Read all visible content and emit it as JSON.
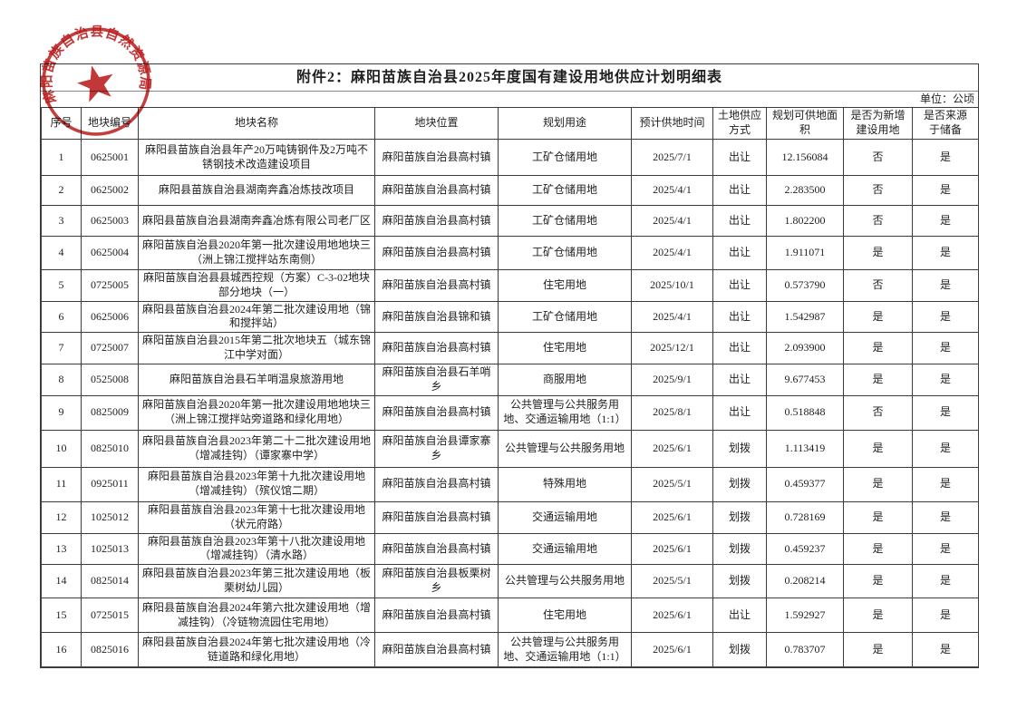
{
  "page": {
    "title": "附件2：麻阳苗族自治县2025年度国有建设用地供应计划明细表",
    "unit_label": "单位：公顷"
  },
  "seal": {
    "text": "麻阳苗族自治县自然资源局",
    "color": "#ba1c1c"
  },
  "table": {
    "headers": [
      "序号",
      "地块编号",
      "地块名称",
      "地块位置",
      "规划用途",
      "预计供地时间",
      "土地供应\n方式",
      "规划可供地面\n积",
      "是否为新增\n建设用地",
      "是否来源\n于储备"
    ],
    "rows": [
      [
        "1",
        "0625001",
        "麻阳县苗族自治县年产20万吨铸钢件及2万吨不锈钢技术改造建设项目",
        "麻阳苗族自治县高村镇",
        "工矿仓储用地",
        "2025/7/1",
        "出让",
        "12.156084",
        "否",
        "是"
      ],
      [
        "2",
        "0625002",
        "麻阳县苗族自治县湖南奔鑫冶炼技改项目",
        "麻阳苗族自治县高村镇",
        "工矿仓储用地",
        "2025/4/1",
        "出让",
        "2.283500",
        "否",
        "是"
      ],
      [
        "3",
        "0625003",
        "麻阳县苗族自治县湖南奔鑫冶炼有限公司老厂区",
        "麻阳苗族自治县高村镇",
        "工矿仓储用地",
        "2025/4/1",
        "出让",
        "1.802200",
        "否",
        "是"
      ],
      [
        "4",
        "0625004",
        "麻阳苗族自治县2020年第一批次建设用地地块三（洲上锦江搅拌站东南侧）",
        "麻阳苗族自治县高村镇",
        "工矿仓储用地",
        "2025/4/1",
        "出让",
        "1.911071",
        "是",
        "是"
      ],
      [
        "5",
        "0725005",
        "麻阳苗族自治县县城西控规（方案）C-3-02地块部分地块（一）",
        "麻阳苗族自治县高村镇",
        "住宅用地",
        "2025/10/1",
        "出让",
        "0.573790",
        "否",
        "是"
      ],
      [
        "6",
        "0625006",
        "麻阳县苗族自治县2024年第二批次建设用地（锦和搅拌站）",
        "麻阳苗族自治县锦和镇",
        "工矿仓储用地",
        "2025/4/1",
        "出让",
        "1.542987",
        "是",
        "是"
      ],
      [
        "7",
        "0725007",
        "麻阳苗族自治县2015年第二批次地块五（城东锦江中学对面）",
        "麻阳苗族自治县高村镇",
        "住宅用地",
        "2025/12/1",
        "出让",
        "2.093900",
        "是",
        "是"
      ],
      [
        "8",
        "0525008",
        "麻阳苗族自治县石羊哨温泉旅游用地",
        "麻阳苗族自治县石羊哨乡",
        "商服用地",
        "2025/9/1",
        "出让",
        "9.677453",
        "是",
        "是"
      ],
      [
        "9",
        "0825009",
        "麻阳苗族自治县2020年第一批次建设用地地块三（洲上锦江搅拌站旁道路和绿化用地）",
        "麻阳苗族自治县高村镇",
        "公共管理与公共服务用地、交通运输用地（1:1）",
        "2025/8/1",
        "出让",
        "0.518848",
        "否",
        "是"
      ],
      [
        "10",
        "0825010",
        "麻阳县苗族自治县2023年第二十二批次建设用地（增减挂钩）（谭家寨中学）",
        "麻阳苗族自治县谭家寨乡",
        "公共管理与公共服务用地",
        "2025/6/1",
        "划拨",
        "1.113419",
        "是",
        "是"
      ],
      [
        "11",
        "0925011",
        "麻阳县苗族自治县2023年第十九批次建设用地（增减挂钩）（殡仪馆二期）",
        "麻阳苗族自治县高村镇",
        "特殊用地",
        "2025/5/1",
        "划拨",
        "0.459377",
        "是",
        "是"
      ],
      [
        "12",
        "1025012",
        "麻阳县苗族自治县2023年第十七批次建设用地（状元府路）",
        "麻阳苗族自治县高村镇",
        "交通运输用地",
        "2025/6/1",
        "划拨",
        "0.728169",
        "是",
        "是"
      ],
      [
        "13",
        "1025013",
        "麻阳县苗族自治县2023年第十八批次建设用地（增减挂钩）（清水路）",
        "麻阳苗族自治县高村镇",
        "交通运输用地",
        "2025/6/1",
        "划拨",
        "0.459237",
        "是",
        "是"
      ],
      [
        "14",
        "0825014",
        "麻阳县苗族自治县2023年第三批次建设用地（板栗树幼儿园）",
        "麻阳苗族自治县板栗树乡",
        "公共管理与公共服务用地",
        "2025/5/1",
        "划拨",
        "0.208214",
        "是",
        "是"
      ],
      [
        "15",
        "0725015",
        "麻阳县苗族自治县2024年第六批次建设用地（增减挂钩）（冷链物流园住宅用地）",
        "麻阳苗族自治县高村镇",
        "住宅用地",
        "2025/6/1",
        "出让",
        "1.592927",
        "是",
        "是"
      ],
      [
        "16",
        "0825016",
        "麻阳县苗族自治县2024年第七批次建设用地（冷链道路和绿化用地）",
        "麻阳苗族自治县高村镇",
        "公共管理与公共服务用地、交通运输用地（1:1）",
        "2025/6/1",
        "划拨",
        "0.783707",
        "是",
        "是"
      ]
    ]
  }
}
